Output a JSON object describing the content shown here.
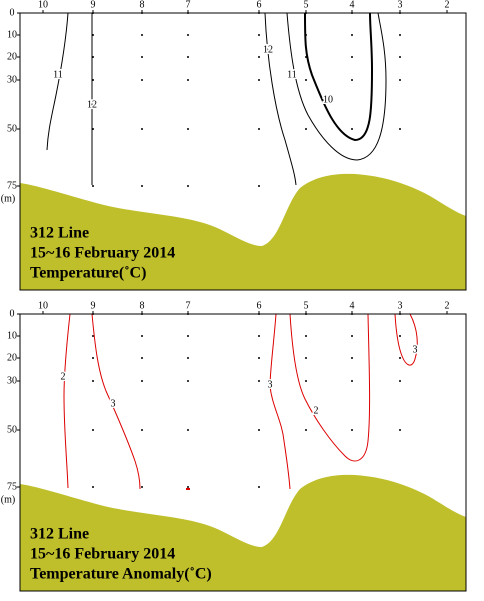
{
  "panels": [
    {
      "stations": [
        "10",
        "9",
        "8",
        "7",
        "6",
        "5",
        "4",
        "3",
        "2"
      ],
      "depths": [
        "0",
        "10",
        "20",
        "30",
        "50",
        "75"
      ],
      "depth_unit": "(m)",
      "contour_labels": [
        "11",
        "12",
        "12",
        "11",
        "10"
      ],
      "title_lines": [
        "312 Line",
        "15~16  February 2014",
        "Temperature(˚C)"
      ]
    },
    {
      "stations": [
        "10",
        "9",
        "8",
        "7",
        "6",
        "5",
        "4",
        "3",
        "2"
      ],
      "depths": [
        "0",
        "10",
        "20",
        "30",
        "50",
        "75"
      ],
      "depth_unit": "(m)",
      "contour_labels": [
        "2",
        "3",
        "3",
        "2",
        "3"
      ],
      "title_lines": [
        "312 Line",
        "15~16  February 2014",
        "Temperature Anomaly(˚C)"
      ]
    }
  ]
}
